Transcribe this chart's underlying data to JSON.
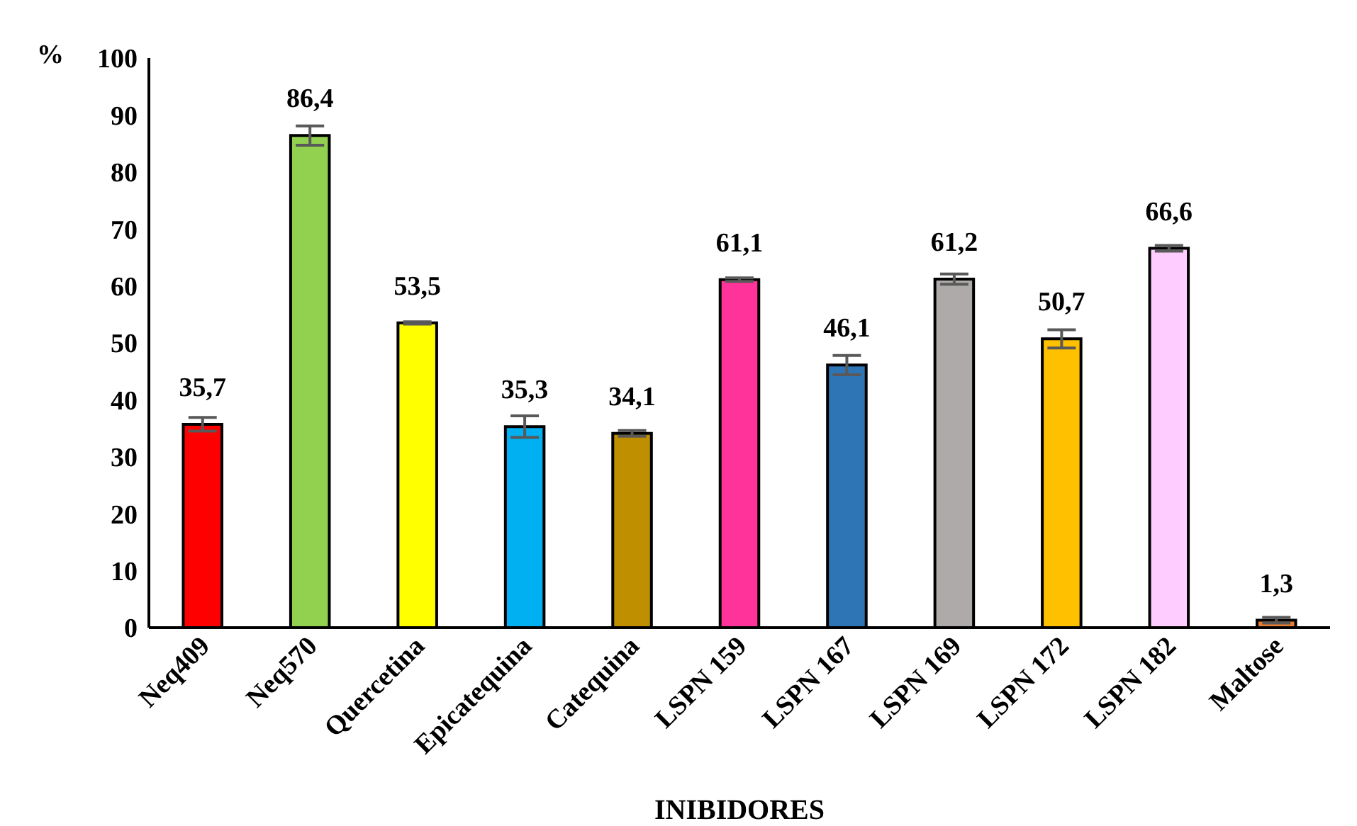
{
  "chart_data": {
    "type": "bar",
    "xlabel": "INIBIDORES",
    "ylabel": "%",
    "categories": [
      "Neq409",
      "Neq570",
      "Quercetina",
      "Epicatequina",
      "Catequina",
      "LSPN 159",
      "LSPN 167",
      "LSPN 169",
      "LSPN 172",
      "LSPN 182",
      "Maltose"
    ],
    "values": [
      35.7,
      86.4,
      53.5,
      35.3,
      34.1,
      61.1,
      46.1,
      61.2,
      50.7,
      66.6,
      1.3
    ],
    "value_labels": [
      "35,7",
      "86,4",
      "53,5",
      "35,3",
      "34,1",
      "61,1",
      "46,1",
      "61,2",
      "50,7",
      "66,6",
      "1,3"
    ],
    "errors": [
      1.2,
      1.7,
      0.2,
      1.9,
      0.5,
      0.3,
      1.7,
      0.9,
      1.6,
      0.5,
      0.5
    ],
    "colors": [
      "#ff0000",
      "#92d050",
      "#ffff00",
      "#00b0f0",
      "#bf8f00",
      "#ff3399",
      "#2e75b6",
      "#aeaaaa",
      "#ffc000",
      "#ffccff",
      "#ed7d31"
    ],
    "ylim": [
      0,
      100
    ],
    "yticks": [
      0,
      10,
      20,
      30,
      40,
      50,
      60,
      70,
      80,
      90,
      100
    ],
    "grid": false,
    "legend": false
  }
}
